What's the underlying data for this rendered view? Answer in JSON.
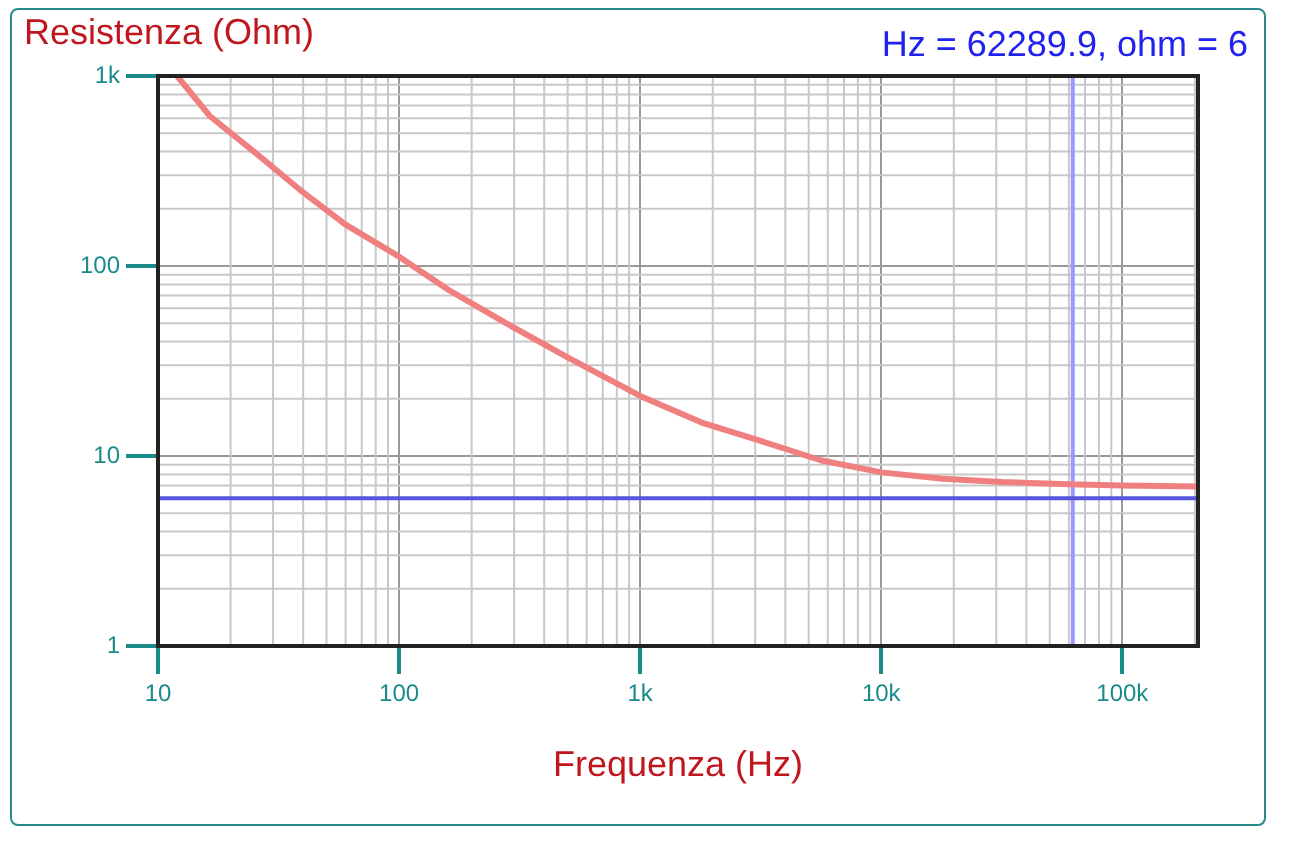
{
  "chart_data": {
    "type": "line",
    "ylabel": "Resistenza (Ohm)",
    "xlabel": "Frequenza (Hz)",
    "annotations": [
      "Hz = 62289.9, ohm = 6"
    ],
    "x": [
      12,
      16.4,
      25,
      38.9,
      60,
      100,
      160,
      263,
      500,
      1000,
      1800,
      3160,
      5600,
      10000,
      18000,
      31600,
      60000,
      100000,
      206000
    ],
    "series": [
      {
        "color": "#f08080",
        "values": [
          1000,
          616,
          400,
          251,
          165,
          112,
          75,
          52,
          33,
          20.7,
          15,
          12,
          9.5,
          8.2,
          7.6,
          7.3,
          7.1,
          7.0,
          6.9
        ]
      }
    ],
    "log": "xy",
    "xlim": [
      10,
      206000
    ],
    "ylim": [
      1,
      1000
    ],
    "xticks": [
      10,
      100,
      {
        "value": 1000,
        "label": "1k"
      },
      {
        "value": 10000,
        "label": "10k"
      },
      {
        "value": 100000,
        "label": "100k"
      }
    ],
    "yticks": [
      1,
      10,
      100,
      {
        "value": 1000,
        "label": "1k"
      }
    ],
    "grid": true,
    "ref_lines": [
      {
        "axis": "x",
        "value": 62289.9,
        "color": "#9999ff"
      },
      {
        "axis": "y",
        "value": 6,
        "color": "#5555dd"
      }
    ]
  }
}
